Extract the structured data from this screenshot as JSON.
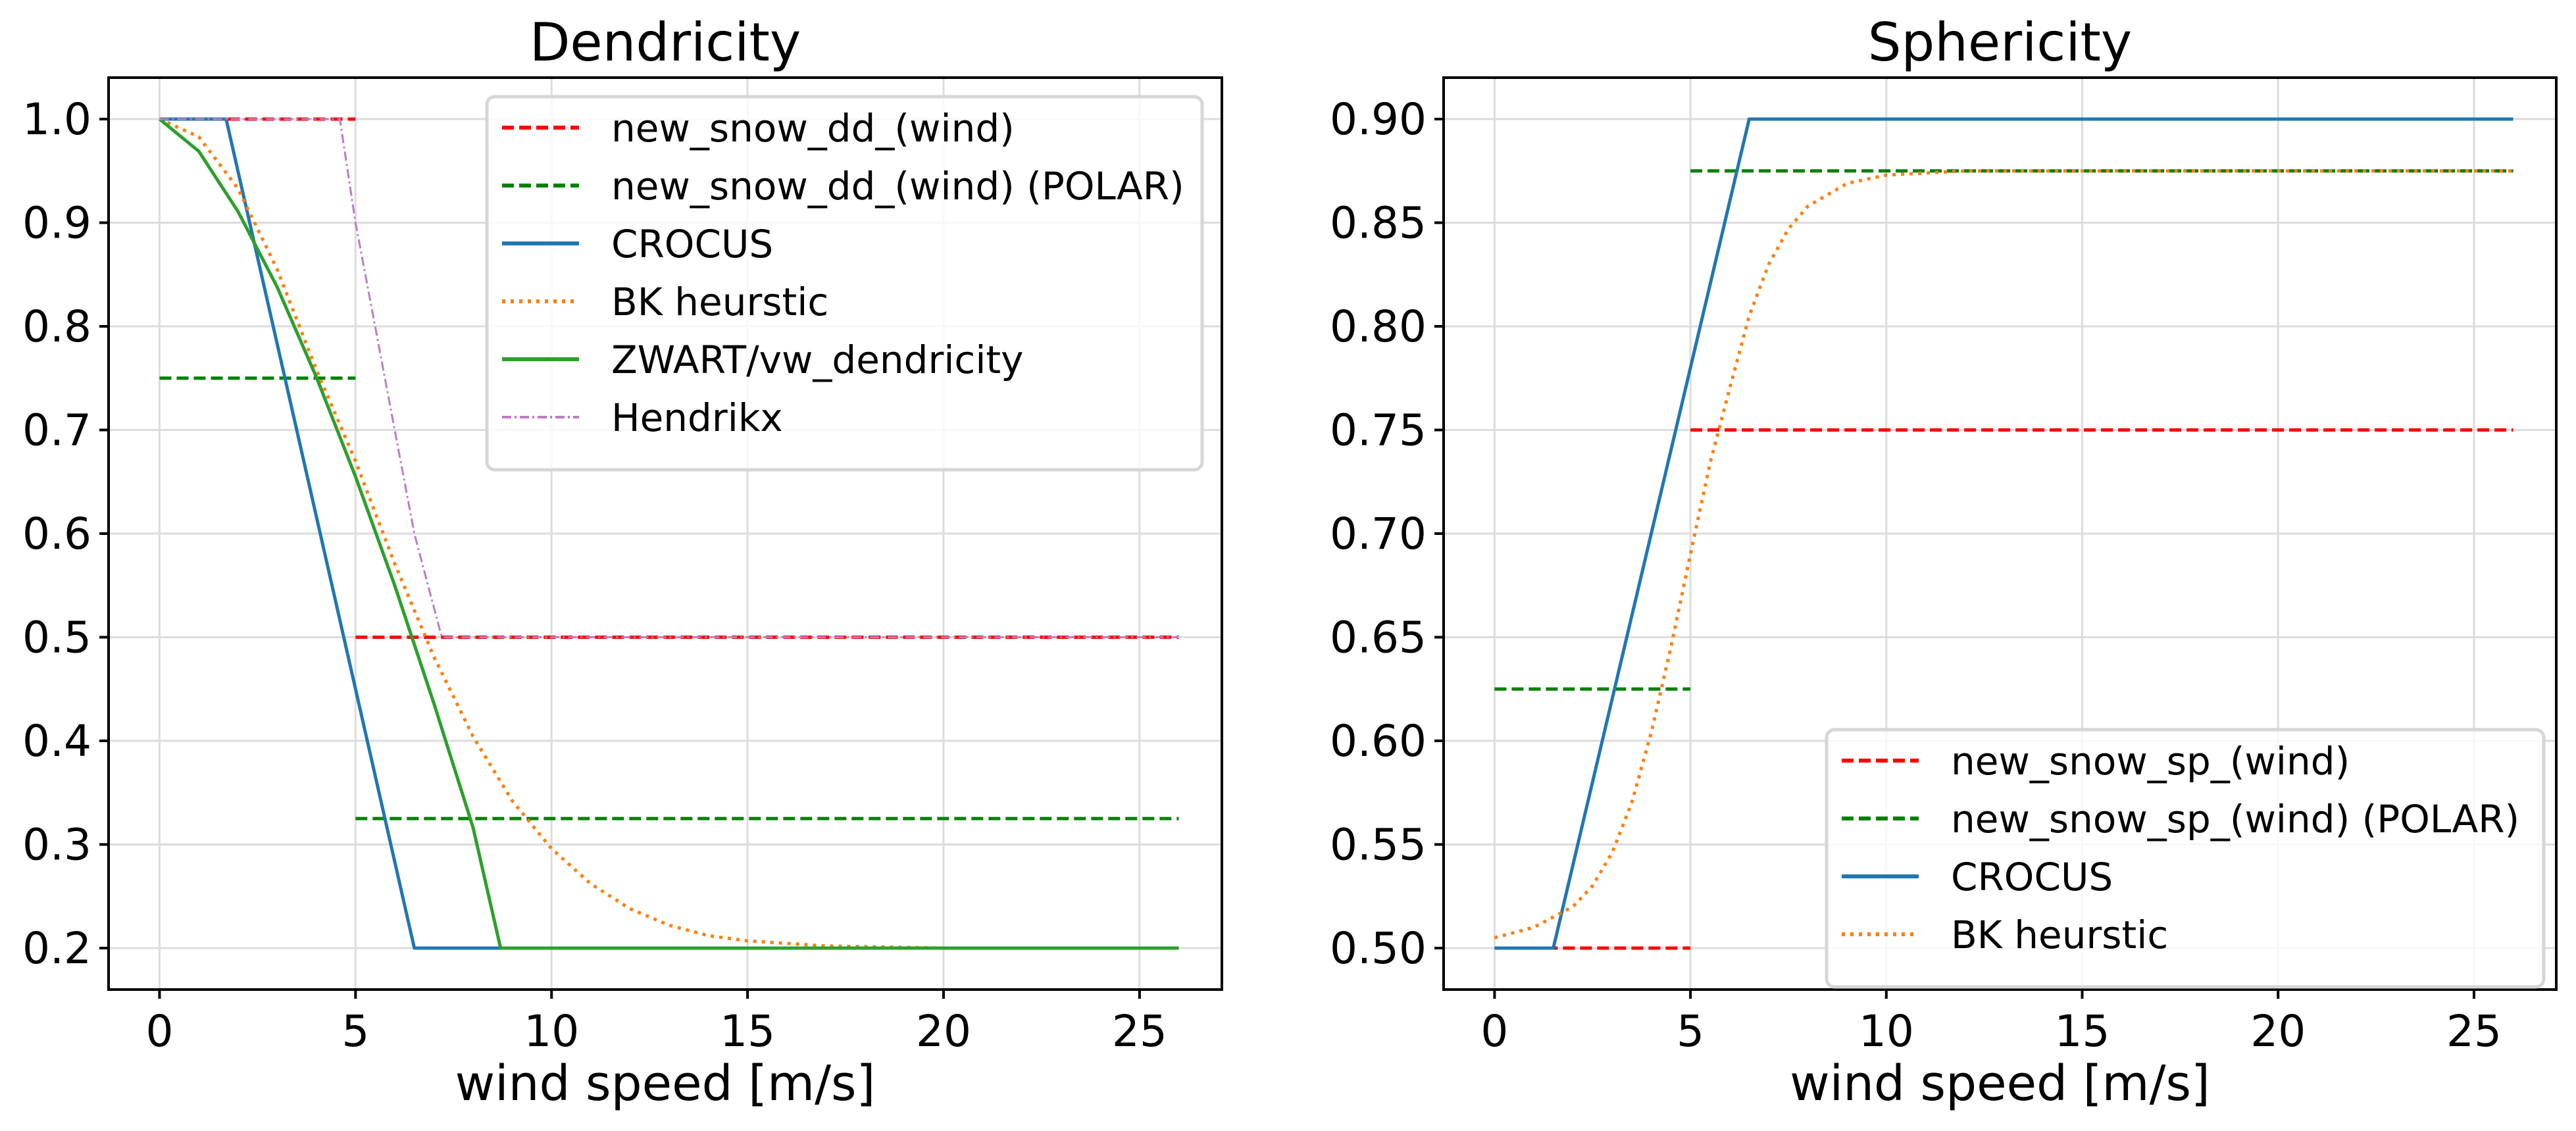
{
  "chart_data": [
    {
      "type": "line",
      "title": "Dendricity",
      "xlabel": "wind speed [m/s]",
      "ylabel": "",
      "xlim": [
        -1.3,
        27.1
      ],
      "ylim": [
        0.16,
        1.04
      ],
      "xticks": [
        0,
        5,
        10,
        15,
        20,
        25
      ],
      "xtick_labels": [
        "0",
        "5",
        "10",
        "15",
        "20",
        "25"
      ],
      "yticks": [
        0.2,
        0.3,
        0.4,
        0.5,
        0.6,
        0.7,
        0.8,
        0.9,
        1.0
      ],
      "ytick_labels": [
        "0.2",
        "0.3",
        "0.4",
        "0.5",
        "0.6",
        "0.7",
        "0.8",
        "0.9",
        "1.0"
      ],
      "grid": true,
      "legend_position": "top-right",
      "series": [
        {
          "name": "new_snow_dd_(wind)",
          "color": "#ff0000",
          "style": "dashed",
          "width": 5,
          "segments": [
            [
              [
                0,
                1.0
              ],
              [
                5,
                1.0
              ]
            ],
            [
              [
                5,
                0.5
              ],
              [
                26,
                0.5
              ]
            ]
          ]
        },
        {
          "name": "new_snow_dd_(wind) (POLAR)",
          "color": "#008000",
          "style": "dashed",
          "width": 5,
          "segments": [
            [
              [
                0,
                0.75
              ],
              [
                5,
                0.75
              ]
            ],
            [
              [
                5,
                0.325
              ],
              [
                26,
                0.325
              ]
            ]
          ]
        },
        {
          "name": "CROCUS",
          "color": "#1f77b4",
          "style": "solid",
          "width": 5,
          "segments": [
            [
              [
                0,
                1.0
              ],
              [
                1.7,
                1.0
              ],
              [
                6.5,
                0.2
              ],
              [
                26,
                0.2
              ]
            ]
          ]
        },
        {
          "name": "BK heurstic",
          "color": "#ff7f0e",
          "style": "dotted",
          "width": 5,
          "segments": [
            [
              [
                0,
                1.0
              ],
              [
                1,
                0.983
              ],
              [
                2,
                0.933
              ],
              [
                3,
                0.855
              ],
              [
                4,
                0.758
              ],
              [
                5,
                0.67
              ],
              [
                6,
                0.571
              ],
              [
                7,
                0.481
              ],
              [
                8,
                0.404
              ],
              [
                9,
                0.342
              ],
              [
                10,
                0.296
              ],
              [
                11,
                0.262
              ],
              [
                12,
                0.238
              ],
              [
                13,
                0.222
              ],
              [
                14,
                0.212
              ],
              [
                15,
                0.207
              ],
              [
                17,
                0.202
              ],
              [
                20,
                0.2
              ],
              [
                26,
                0.2
              ]
            ]
          ]
        },
        {
          "name": "ZWART/vw_dendricity",
          "color": "#2ca02c",
          "style": "solid",
          "width": 5,
          "segments": [
            [
              [
                0,
                1.0
              ],
              [
                1,
                0.969
              ],
              [
                2,
                0.911
              ],
              [
                3,
                0.838
              ],
              [
                4,
                0.751
              ],
              [
                5,
                0.655
              ],
              [
                6,
                0.55
              ],
              [
                7,
                0.436
              ],
              [
                8,
                0.316
              ],
              [
                8.7,
                0.2
              ],
              [
                26,
                0.2
              ]
            ]
          ]
        },
        {
          "name": "Hendrikx",
          "color": "#c17ac6",
          "style": "dashdot",
          "width": 3,
          "segments": [
            [
              [
                0,
                1.0
              ],
              [
                4.6,
                1.0
              ],
              [
                5.0,
                0.9
              ],
              [
                5.5,
                0.8
              ],
              [
                6.0,
                0.7
              ],
              [
                6.5,
                0.6
              ],
              [
                7.2,
                0.5
              ],
              [
                26,
                0.5
              ]
            ]
          ]
        }
      ]
    },
    {
      "type": "line",
      "title": "Sphericity",
      "xlabel": "wind speed [m/s]",
      "ylabel": "",
      "xlim": [
        -1.3,
        27.1
      ],
      "ylim": [
        0.48,
        0.92
      ],
      "xticks": [
        0,
        5,
        10,
        15,
        20,
        25
      ],
      "xtick_labels": [
        "0",
        "5",
        "10",
        "15",
        "20",
        "25"
      ],
      "yticks": [
        0.5,
        0.55,
        0.6,
        0.65,
        0.7,
        0.75,
        0.8,
        0.85,
        0.9
      ],
      "ytick_labels": [
        "0.50",
        "0.55",
        "0.60",
        "0.65",
        "0.70",
        "0.75",
        "0.80",
        "0.85",
        "0.90"
      ],
      "grid": true,
      "legend_position": "lower-right",
      "series": [
        {
          "name": "new_snow_sp_(wind)",
          "color": "#ff0000",
          "style": "dashed",
          "width": 5,
          "segments": [
            [
              [
                0,
                0.5
              ],
              [
                5,
                0.5
              ]
            ],
            [
              [
                5,
                0.75
              ],
              [
                26,
                0.75
              ]
            ]
          ]
        },
        {
          "name": "new_snow_sp_(wind) (POLAR)",
          "color": "#008000",
          "style": "dashed",
          "width": 5,
          "segments": [
            [
              [
                0,
                0.625
              ],
              [
                5,
                0.625
              ]
            ],
            [
              [
                5,
                0.875
              ],
              [
                26,
                0.875
              ]
            ]
          ]
        },
        {
          "name": "CROCUS",
          "color": "#1f77b4",
          "style": "solid",
          "width": 5,
          "segments": [
            [
              [
                0,
                0.5
              ],
              [
                1.5,
                0.5
              ],
              [
                6.5,
                0.9
              ],
              [
                26,
                0.9
              ]
            ]
          ]
        },
        {
          "name": "BK heurstic",
          "color": "#ff7f0e",
          "style": "dotted",
          "width": 5,
          "segments": [
            [
              [
                0,
                0.505
              ],
              [
                1,
                0.51
              ],
              [
                2,
                0.52
              ],
              [
                2.5,
                0.53
              ],
              [
                3,
                0.546
              ],
              [
                3.5,
                0.57
              ],
              [
                4,
                0.604
              ],
              [
                4.5,
                0.645
              ],
              [
                5,
                0.69
              ],
              [
                5.5,
                0.734
              ],
              [
                6,
                0.77
              ],
              [
                6.5,
                0.805
              ],
              [
                7,
                0.83
              ],
              [
                7.5,
                0.847
              ],
              [
                8,
                0.858
              ],
              [
                9,
                0.869
              ],
              [
                10,
                0.873
              ],
              [
                12,
                0.875
              ],
              [
                26,
                0.875
              ]
            ]
          ]
        }
      ]
    }
  ]
}
